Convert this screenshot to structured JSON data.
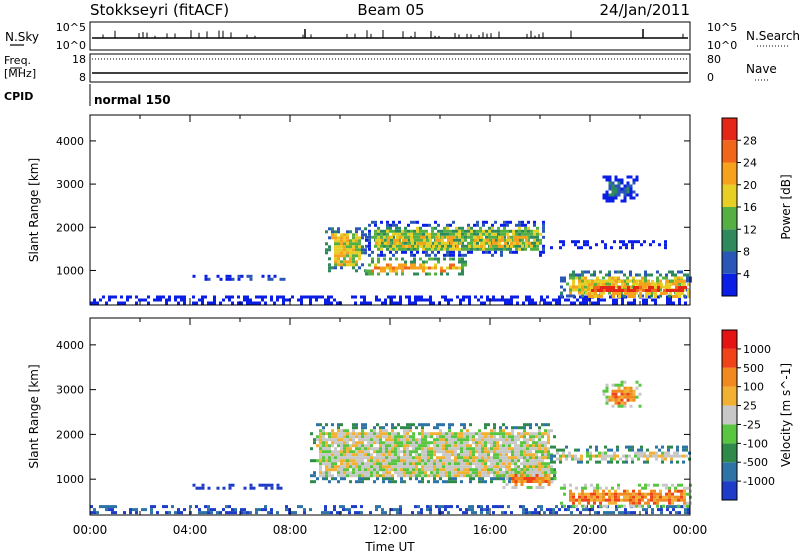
{
  "header": {
    "station": "Stokkseyri (fitACF)",
    "beam": "Beam 05",
    "date": "24/Jan/2011"
  },
  "noise_panel": {
    "left_label": "N.Sky",
    "right_label": "N.Search",
    "left_top_tick": "10^5",
    "left_bottom_tick": "10^0",
    "right_top_tick": "10^5",
    "right_bottom_tick": "10^0"
  },
  "freq_panel": {
    "left_label_line1": "Freq.",
    "left_label_line2": "[MHz]",
    "right_label": "Nave",
    "left_top_tick": "18",
    "left_bottom_tick": "8",
    "right_top_tick": "80",
    "right_bottom_tick": "0"
  },
  "cpid": {
    "label": "CPID",
    "mode": "normal 150"
  },
  "x_axis": {
    "title": "Time UT",
    "ticks": [
      "00:00",
      "04:00",
      "08:00",
      "12:00",
      "16:00",
      "20:00",
      "00:00"
    ]
  },
  "chart_data": [
    {
      "type": "heatmap",
      "title": "",
      "xlabel": "Time UT",
      "ylabel": "Slant Range [km]",
      "xlim": [
        0,
        24
      ],
      "ylim": [
        200,
        4600
      ],
      "y_ticks": [
        "1000",
        "2000",
        "3000",
        "4000"
      ],
      "colorbar": {
        "label": "Power [dB]",
        "ticks": [
          "4",
          "8",
          "12",
          "16",
          "20",
          "24",
          "28"
        ],
        "colors": [
          "#0a1ee6",
          "#2a56b8",
          "#2e8a5c",
          "#55b043",
          "#e7cf26",
          "#f7a21c",
          "#f0661a",
          "#e52718"
        ]
      },
      "regions": [
        {
          "t_start": 0.0,
          "t_end": 24.0,
          "r_low": 230,
          "r_high": 420,
          "level": 2
        },
        {
          "t_start": 4.1,
          "t_end": 7.8,
          "r_low": 780,
          "r_high": 900,
          "level": 3
        },
        {
          "t_start": 9.4,
          "t_end": 11.0,
          "r_low": 1000,
          "r_high": 2000,
          "level": 4
        },
        {
          "t_start": 11.0,
          "t_end": 18.2,
          "r_low": 1350,
          "r_high": 2150,
          "level": 3
        },
        {
          "t_start": 11.4,
          "t_end": 17.6,
          "r_low": 1550,
          "r_high": 1800,
          "level": 7
        },
        {
          "t_start": 11.0,
          "t_end": 15.0,
          "r_low": 900,
          "r_high": 1300,
          "level": 5
        },
        {
          "t_start": 18.4,
          "t_end": 23.0,
          "r_low": 1500,
          "r_high": 1700,
          "level": 1
        },
        {
          "t_start": 18.8,
          "t_end": 24.0,
          "r_low": 380,
          "r_high": 1000,
          "level": 4
        },
        {
          "t_start": 19.8,
          "t_end": 24.0,
          "r_low": 430,
          "r_high": 780,
          "level": 7
        },
        {
          "t_start": 20.5,
          "t_end": 21.9,
          "r_low": 2600,
          "r_high": 3200,
          "level": 1
        }
      ]
    },
    {
      "type": "heatmap",
      "title": "",
      "xlabel": "Time UT",
      "ylabel": "Slant Range [km]",
      "xlim": [
        0,
        24
      ],
      "ylim": [
        200,
        4600
      ],
      "y_ticks": [
        "1000",
        "2000",
        "3000",
        "4000"
      ],
      "colorbar": {
        "label": "Velocity [m s^-1]",
        "ticks": [
          "1000",
          "500",
          "100",
          "25",
          "-25",
          "-100",
          "-500",
          "-1000"
        ],
        "colors": [
          "#1e3cc8",
          "#2d73a8",
          "#2f8a4a",
          "#58c640",
          "#c8c8c8",
          "#f2b132",
          "#f08a1e",
          "#f04418",
          "#e41414"
        ]
      },
      "regions": [
        {
          "t_start": 0.0,
          "t_end": 24.0,
          "r_low": 230,
          "r_high": 420,
          "level": 3
        },
        {
          "t_start": 4.1,
          "t_end": 7.8,
          "r_low": 780,
          "r_high": 900,
          "level": 2
        },
        {
          "t_start": 8.8,
          "t_end": 18.6,
          "r_low": 950,
          "r_high": 2250,
          "level": 4
        },
        {
          "t_start": 18.4,
          "t_end": 24.0,
          "r_low": 1350,
          "r_high": 1750,
          "level": 4
        },
        {
          "t_start": 16.5,
          "t_end": 18.6,
          "r_low": 800,
          "r_high": 1250,
          "level": 6
        },
        {
          "t_start": 18.8,
          "t_end": 24.0,
          "r_low": 380,
          "r_high": 900,
          "level": 6
        },
        {
          "t_start": 20.5,
          "t_end": 22.0,
          "r_low": 2600,
          "r_high": 3200,
          "level": 6
        }
      ]
    }
  ]
}
